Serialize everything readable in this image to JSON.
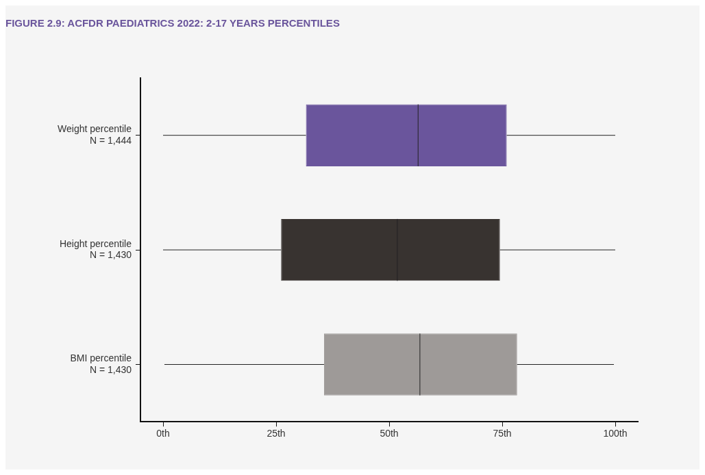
{
  "chart_data": {
    "type": "box",
    "orientation": "horizontal",
    "title": "FIGURE 2.9: ACFDR PAEDIATRICS 2022: 2-17 YEARS PERCENTILES",
    "categories": [
      "Weight percentile\nN = 1,444",
      "Height percentile\nN = 1,430",
      "BMI percentile\nN = 1,430"
    ],
    "colors": [
      "#6a559c",
      "#383330",
      "#9e9a98"
    ],
    "boxes": [
      {
        "low": 0,
        "q1": 31.6,
        "median": 56.4,
        "q3": 76,
        "high": 100
      },
      {
        "low": 0,
        "q1": 26.1,
        "median": 51.8,
        "q3": 74.5,
        "high": 100
      },
      {
        "low": 0.3,
        "q1": 35.6,
        "median": 56.8,
        "q3": 78.3,
        "high": 99.7
      }
    ],
    "xlim": [
      -5,
      105
    ],
    "xticks": [
      {
        "value": 0,
        "label": "0th"
      },
      {
        "value": 25,
        "label": "25th"
      },
      {
        "value": 50,
        "label": "50th"
      },
      {
        "value": 75,
        "label": "75th"
      },
      {
        "value": 100,
        "label": "100th"
      }
    ],
    "grid": false,
    "legend": false
  }
}
